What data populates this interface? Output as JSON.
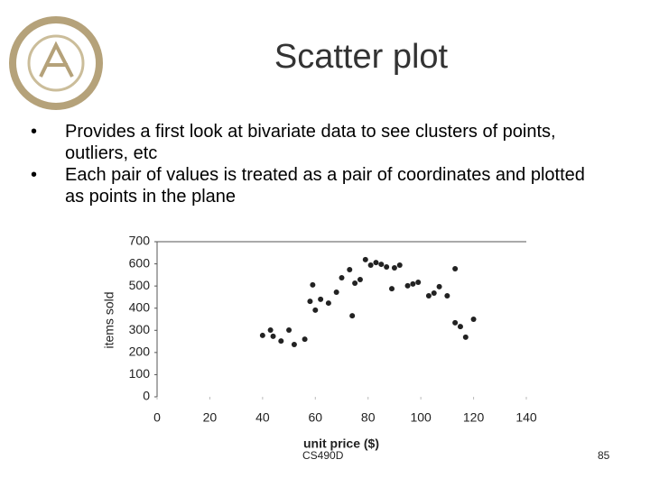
{
  "slide": {
    "title": "Scatter plot",
    "bullets": [
      "Provides a first look at bivariate data to see clusters of points, outliers, etc",
      "Each pair of values is treated as a pair of coordinates and plotted as points in the plane"
    ],
    "footer": "CS490D",
    "page_number": "85"
  },
  "chart_data": {
    "type": "scatter",
    "x_label": "unit price ($)",
    "y_label": "items sold",
    "x": [
      40,
      43,
      44,
      47,
      50,
      52,
      56,
      58,
      59,
      60,
      62,
      65,
      68,
      70,
      73,
      74,
      75,
      77,
      79,
      81,
      83,
      85,
      87,
      89,
      90,
      92,
      95,
      97,
      99,
      103,
      105,
      107,
      110,
      113,
      113,
      115,
      117,
      120
    ],
    "values": [
      277,
      301,
      273,
      252,
      301,
      236,
      260,
      431,
      505,
      391,
      440,
      423,
      472,
      537,
      574,
      366,
      513,
      529,
      619,
      594,
      606,
      598,
      586,
      488,
      582,
      594,
      501,
      509,
      517,
      456,
      468,
      497,
      456,
      578,
      334,
      317,
      269,
      350
    ],
    "color": "#222222",
    "xlim": [
      0,
      140
    ],
    "xticks": [
      0,
      20,
      40,
      60,
      80,
      100,
      120,
      140
    ],
    "ylim": [
      0,
      700
    ],
    "yticks": [
      0,
      100,
      200,
      300,
      400,
      500,
      600,
      700
    ],
    "grid": false
  }
}
